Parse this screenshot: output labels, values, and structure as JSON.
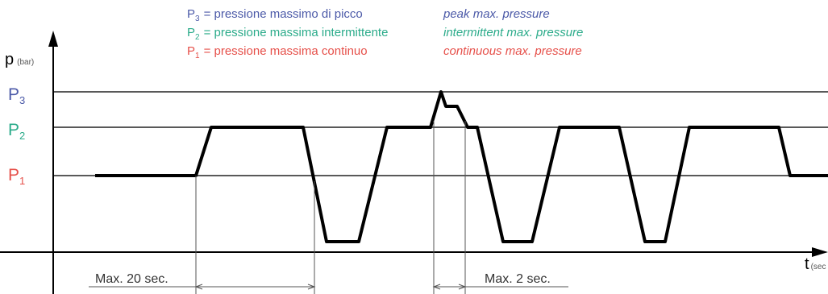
{
  "colors": {
    "p3": "#4c5aa8",
    "p2": "#2bab8a",
    "p1": "#e6504a",
    "line": "#000000",
    "grid": "#222222",
    "dim": "#444444"
  },
  "legend": [
    {
      "symbol": "P",
      "sub": "3",
      "it": "= pressione massimo di picco",
      "en": "peak max. pressure",
      "color_key": "p3"
    },
    {
      "symbol": "P",
      "sub": "2",
      "it": "= pressione massima intermittente",
      "en": "intermittent max. pressure",
      "color_key": "p2"
    },
    {
      "symbol": "P",
      "sub": "1",
      "it": "= pressione massima continuo",
      "en": "continuous max. pressure",
      "color_key": "p1"
    }
  ],
  "levels": [
    {
      "symbol": "P",
      "sub": "3",
      "color_key": "p3"
    },
    {
      "symbol": "P",
      "sub": "2",
      "color_key": "p2"
    },
    {
      "symbol": "P",
      "sub": "1",
      "color_key": "p1"
    }
  ],
  "y_axis": {
    "label": "p",
    "unit": "(bar)"
  },
  "x_axis": {
    "label": "t",
    "unit": "(sec"
  },
  "dimensions": [
    {
      "label": "Max. 20 sec."
    },
    {
      "label": "Max. 2 sec."
    }
  ]
}
